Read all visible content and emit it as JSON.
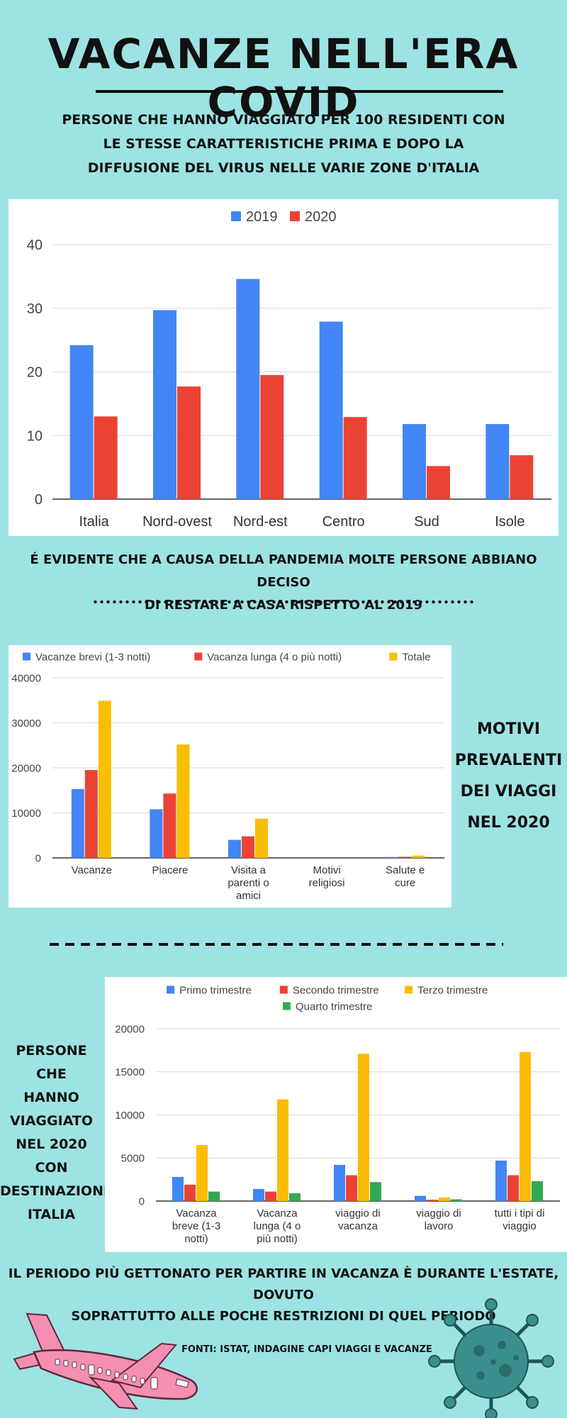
{
  "header": {
    "title": "VACANZE NELL'ERA COVID",
    "subtitle_lines": [
      "PERSONE CHE HANNO VIAGGIATO PER 100 RESIDENTI CON",
      "LE STESSE CARATTERISTICHE PRIMA E DOPO LA",
      "DIFFUSIONE DEL VIRUS NELLE VARIE ZONE D'ITALIA"
    ]
  },
  "notes": {
    "pandemic_lines": [
      "É EVIDENTE CHE A CAUSA DELLA PANDEMIA MOLTE PERSONE ABBIANO DECISO",
      "DI RESTARE A CASA RISPETTO AL 2019"
    ],
    "motivi_lines": [
      "MOTIVI",
      "PREVALENTI",
      "DEI VIAGGI",
      "NEL 2020"
    ],
    "persone_lines": [
      "PERSONE CHE",
      "HANNO",
      "VIAGGIATO",
      "NEL 2020 CON",
      "DESTINAZIONE",
      "ITALIA"
    ],
    "summer_lines": [
      "IL PERIODO PIÙ GETTONATO PER PARTIRE IN VACANZA È DURANTE L'ESTATE, DOVUTO",
      "SOPRATTUTTO ALLE POCHE RESTRIZIONI DI QUEL PERIODO"
    ],
    "source": "FONTI: ISTAT, INDAGINE CAPI VIAGGI E VACANZE"
  },
  "colors": {
    "blue": "#4285f4",
    "red": "#ea4335",
    "yellow": "#fbbc04",
    "green": "#34a853",
    "plane": "#f48fb1",
    "virus": "#3a8f8c"
  },
  "chart_data": [
    {
      "type": "bar",
      "categories": [
        "Italia",
        "Nord-ovest",
        "Nord-est",
        "Centro",
        "Sud",
        "Isole"
      ],
      "series": [
        {
          "name": "2019",
          "values": [
            24.2,
            29.7,
            34.6,
            27.9,
            11.8,
            11.8
          ]
        },
        {
          "name": "2020",
          "values": [
            13.0,
            17.7,
            19.5,
            12.9,
            5.2,
            6.9
          ]
        }
      ],
      "yticks": [
        "0",
        "10",
        "20",
        "30",
        "40"
      ],
      "ylim": [
        0,
        40
      ],
      "grid": true,
      "legend": "top"
    },
    {
      "type": "bar",
      "categories": [
        "Vacanze",
        "Piacere",
        "Visita a parenti o amici",
        "Motivi religiosi",
        "Salute e cure"
      ],
      "category_lines": [
        [
          "Vacanze"
        ],
        [
          "Piacere"
        ],
        [
          "Visita a",
          "parenti o",
          "amici"
        ],
        [
          "Motivi",
          "religiosi"
        ],
        [
          "Salute e",
          "cure"
        ]
      ],
      "series": [
        {
          "name": "Vacanze brevi (1-3 notti)",
          "values": [
            15300,
            10800,
            4000,
            0,
            200
          ]
        },
        {
          "name": "Vacanza lunga (4 o più notti)",
          "values": [
            19500,
            14300,
            4800,
            0,
            250
          ]
        },
        {
          "name": "Totale",
          "values": [
            34900,
            25200,
            8700,
            0,
            500
          ]
        }
      ],
      "yticks": [
        "0",
        "10000",
        "20000",
        "30000",
        "40000"
      ],
      "ylim": [
        0,
        40000
      ],
      "grid": true,
      "legend": "top"
    },
    {
      "type": "bar",
      "categories": [
        "Vacanza breve (1-3 notti)",
        "Vacanza lunga (4 o più notti)",
        "viaggio di vacanza",
        "viaggio di lavoro",
        "tutti i tipi di viaggio"
      ],
      "category_lines": [
        [
          "Vacanza",
          "breve (1-3",
          "notti)"
        ],
        [
          "Vacanza",
          "lunga (4 o",
          "più notti)"
        ],
        [
          "viaggio di",
          "vacanza"
        ],
        [
          "viaggio di",
          "lavoro"
        ],
        [
          "tutti i tipi di",
          "viaggio"
        ]
      ],
      "series": [
        {
          "name": "Primo trimestre",
          "values": [
            2800,
            1400,
            4200,
            600,
            4700
          ]
        },
        {
          "name": "Secondo trimestre",
          "values": [
            1900,
            1100,
            3000,
            150,
            3000
          ]
        },
        {
          "name": "Terzo trimestre",
          "values": [
            6500,
            11800,
            17100,
            400,
            17300
          ]
        },
        {
          "name": "Quarto trimestre",
          "values": [
            1100,
            900,
            2200,
            200,
            2300
          ]
        }
      ],
      "yticks": [
        "0",
        "5000",
        "10000",
        "15000",
        "20000"
      ],
      "ylim": [
        0,
        20000
      ],
      "grid": true,
      "legend": "top"
    }
  ]
}
